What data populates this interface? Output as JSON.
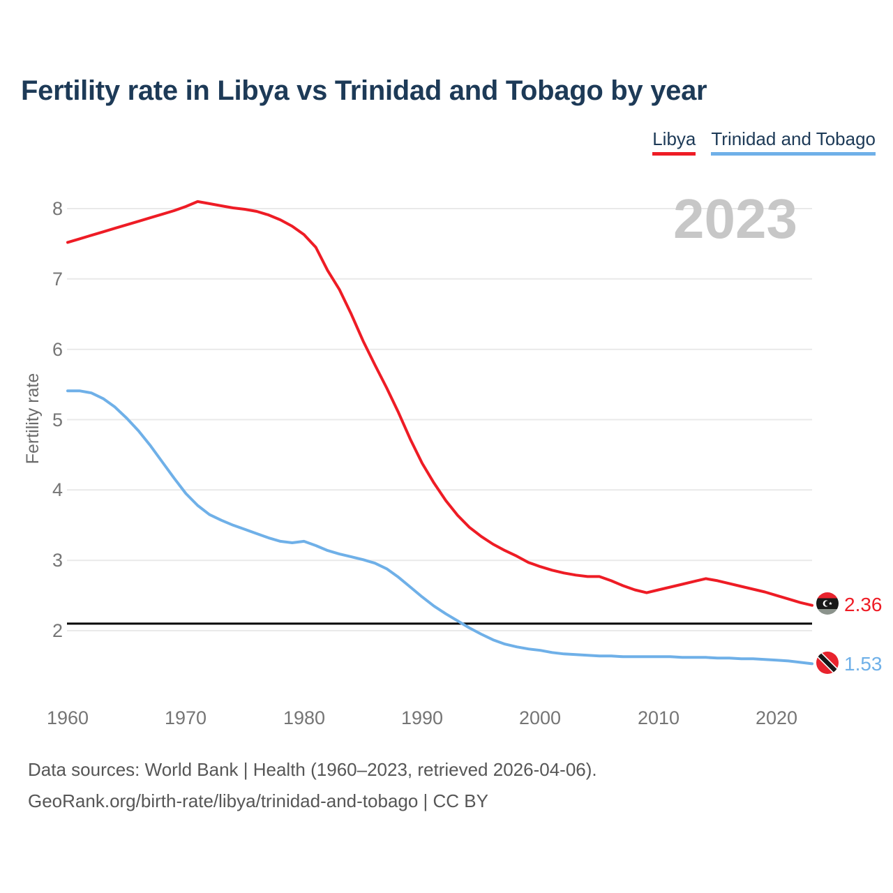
{
  "title": "Fertility rate in Libya vs Trinidad and Tobago by year",
  "watermark": "2023",
  "legend": {
    "items": [
      {
        "label": "Libya",
        "color": "#ee1c25"
      },
      {
        "label": "Trinidad and Tobago",
        "color": "#6fb0e8"
      }
    ]
  },
  "y_axis": {
    "title": "Fertility rate",
    "ticks": [
      8,
      7,
      6,
      5,
      4,
      3,
      2
    ]
  },
  "x_axis": {
    "ticks": [
      1960,
      1970,
      1980,
      1990,
      2000,
      2010,
      2020
    ]
  },
  "end_labels": {
    "libya": {
      "value": "2.36",
      "flag": "libya-flag-icon"
    },
    "trinidad_and_tobago": {
      "value": "1.53",
      "flag": "trinidad-and-tobago-flag-icon"
    }
  },
  "footer": {
    "line1": "Data sources: World Bank | Health (1960–2023, retrieved 2026-04-06).",
    "line2": "GeoRank.org/birth-rate/libya/trinidad-and-tobago | CC BY"
  },
  "colors": {
    "title_text": "#1d3a57",
    "libya_line": "#ee1c25",
    "trinidad_line": "#6fb0e8",
    "gridline": "#e9e9e9",
    "tick_text": "#757575",
    "footer_text": "#565656",
    "watermark_text": "#c7c7c7",
    "replacement_line": "#000000"
  },
  "chart_data": {
    "type": "line",
    "title": "Fertility rate in Libya vs Trinidad and Tobago by year",
    "xlabel": "",
    "ylabel": "Fertility rate",
    "x_range": [
      1960,
      2023
    ],
    "ylim": [
      1.35,
      8.45
    ],
    "grid": "horizontal",
    "legend_position": "top-right",
    "years": [
      1960,
      1961,
      1962,
      1963,
      1964,
      1965,
      1966,
      1967,
      1968,
      1969,
      1970,
      1971,
      1972,
      1973,
      1974,
      1975,
      1976,
      1977,
      1978,
      1979,
      1980,
      1981,
      1982,
      1983,
      1984,
      1985,
      1986,
      1987,
      1988,
      1989,
      1990,
      1991,
      1992,
      1993,
      1994,
      1995,
      1996,
      1997,
      1998,
      1999,
      2000,
      2001,
      2002,
      2003,
      2004,
      2005,
      2006,
      2007,
      2008,
      2009,
      2010,
      2011,
      2012,
      2013,
      2014,
      2015,
      2016,
      2017,
      2018,
      2019,
      2020,
      2021,
      2022,
      2023
    ],
    "series": [
      {
        "name": "Libya",
        "color": "#ee1c25",
        "end_label": "2.36",
        "values": [
          7.52,
          7.57,
          7.62,
          7.67,
          7.72,
          7.77,
          7.82,
          7.87,
          7.92,
          7.97,
          8.03,
          8.1,
          8.07,
          8.04,
          8.01,
          7.99,
          7.96,
          7.91,
          7.84,
          7.75,
          7.63,
          7.45,
          7.12,
          6.85,
          6.5,
          6.12,
          5.78,
          5.45,
          5.1,
          4.72,
          4.38,
          4.1,
          3.85,
          3.64,
          3.47,
          3.34,
          3.23,
          3.14,
          3.06,
          2.97,
          2.91,
          2.86,
          2.82,
          2.79,
          2.77,
          2.77,
          2.71,
          2.64,
          2.58,
          2.54,
          2.58,
          2.62,
          2.66,
          2.7,
          2.74,
          2.71,
          2.67,
          2.63,
          2.59,
          2.55,
          2.5,
          2.45,
          2.4,
          2.36
        ]
      },
      {
        "name": "Trinidad and Tobago",
        "color": "#6fb0e8",
        "end_label": "1.53",
        "values": [
          5.41,
          5.41,
          5.38,
          5.3,
          5.18,
          5.02,
          4.84,
          4.63,
          4.4,
          4.17,
          3.95,
          3.78,
          3.65,
          3.57,
          3.5,
          3.44,
          3.38,
          3.32,
          3.27,
          3.25,
          3.27,
          3.21,
          3.14,
          3.09,
          3.05,
          3.01,
          2.96,
          2.88,
          2.76,
          2.62,
          2.48,
          2.35,
          2.24,
          2.14,
          2.04,
          1.95,
          1.87,
          1.81,
          1.77,
          1.74,
          1.72,
          1.69,
          1.67,
          1.66,
          1.65,
          1.64,
          1.64,
          1.63,
          1.63,
          1.63,
          1.63,
          1.63,
          1.62,
          1.62,
          1.62,
          1.61,
          1.61,
          1.6,
          1.6,
          1.59,
          1.58,
          1.57,
          1.55,
          1.53
        ]
      }
    ],
    "annotations": {
      "hline": {
        "value": 2.1,
        "color": "#000000"
      }
    }
  }
}
